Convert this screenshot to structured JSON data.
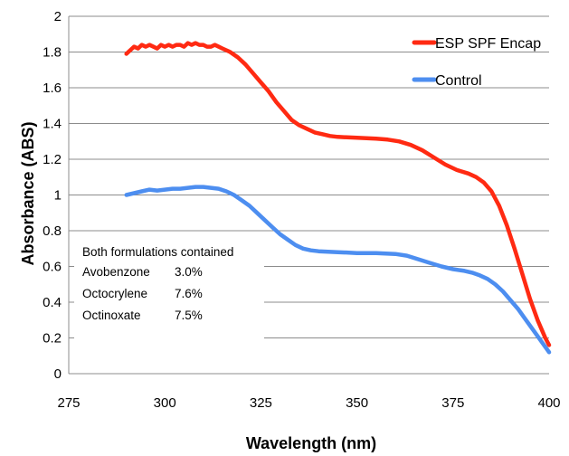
{
  "chart_data": {
    "type": "line",
    "title": "",
    "xlabel": "Wavelength (nm)",
    "ylabel": "Absorbance (ABS)",
    "xlim": [
      275,
      400
    ],
    "ylim": [
      0,
      2
    ],
    "xticks": [
      275,
      300,
      325,
      350,
      375,
      400
    ],
    "yticks": [
      0,
      0.2,
      0.4,
      0.6,
      0.8,
      1,
      1.2,
      1.4,
      1.6,
      1.8,
      2
    ],
    "grid": "horizontal",
    "legend_position": "top-right",
    "series": [
      {
        "name": "ESP SPF Encap",
        "color": "#ff2a12",
        "points": [
          [
            290,
            1.79
          ],
          [
            291,
            1.81
          ],
          [
            292,
            1.83
          ],
          [
            293,
            1.82
          ],
          [
            294,
            1.84
          ],
          [
            295,
            1.83
          ],
          [
            296,
            1.84
          ],
          [
            297,
            1.83
          ],
          [
            298,
            1.82
          ],
          [
            299,
            1.84
          ],
          [
            300,
            1.83
          ],
          [
            301,
            1.84
          ],
          [
            302,
            1.83
          ],
          [
            303,
            1.84
          ],
          [
            304,
            1.84
          ],
          [
            305,
            1.83
          ],
          [
            306,
            1.85
          ],
          [
            307,
            1.84
          ],
          [
            308,
            1.85
          ],
          [
            309,
            1.84
          ],
          [
            310,
            1.84
          ],
          [
            311,
            1.83
          ],
          [
            312,
            1.83
          ],
          [
            313,
            1.84
          ],
          [
            314,
            1.83
          ],
          [
            315,
            1.82
          ],
          [
            317,
            1.8
          ],
          [
            319,
            1.77
          ],
          [
            321,
            1.73
          ],
          [
            323,
            1.68
          ],
          [
            325,
            1.63
          ],
          [
            327,
            1.58
          ],
          [
            329,
            1.52
          ],
          [
            331,
            1.47
          ],
          [
            333,
            1.42
          ],
          [
            335,
            1.39
          ],
          [
            337,
            1.37
          ],
          [
            339,
            1.35
          ],
          [
            341,
            1.34
          ],
          [
            343,
            1.33
          ],
          [
            345,
            1.325
          ],
          [
            350,
            1.32
          ],
          [
            355,
            1.315
          ],
          [
            358,
            1.31
          ],
          [
            361,
            1.3
          ],
          [
            364,
            1.28
          ],
          [
            367,
            1.25
          ],
          [
            370,
            1.21
          ],
          [
            373,
            1.17
          ],
          [
            376,
            1.14
          ],
          [
            379,
            1.12
          ],
          [
            381,
            1.1
          ],
          [
            383,
            1.07
          ],
          [
            385,
            1.02
          ],
          [
            387,
            0.94
          ],
          [
            389,
            0.83
          ],
          [
            391,
            0.7
          ],
          [
            393,
            0.56
          ],
          [
            395,
            0.42
          ],
          [
            397,
            0.3
          ],
          [
            399,
            0.2
          ],
          [
            400,
            0.16
          ]
        ]
      },
      {
        "name": "Control",
        "color": "#4d8ef0",
        "points": [
          [
            290,
            1.0
          ],
          [
            292,
            1.01
          ],
          [
            294,
            1.02
          ],
          [
            296,
            1.03
          ],
          [
            298,
            1.025
          ],
          [
            300,
            1.03
          ],
          [
            302,
            1.035
          ],
          [
            304,
            1.035
          ],
          [
            306,
            1.04
          ],
          [
            308,
            1.045
          ],
          [
            310,
            1.045
          ],
          [
            312,
            1.04
          ],
          [
            314,
            1.035
          ],
          [
            316,
            1.02
          ],
          [
            318,
            1.0
          ],
          [
            320,
            0.97
          ],
          [
            322,
            0.94
          ],
          [
            324,
            0.9
          ],
          [
            326,
            0.86
          ],
          [
            328,
            0.82
          ],
          [
            330,
            0.78
          ],
          [
            332,
            0.75
          ],
          [
            334,
            0.72
          ],
          [
            336,
            0.7
          ],
          [
            338,
            0.69
          ],
          [
            340,
            0.685
          ],
          [
            345,
            0.68
          ],
          [
            350,
            0.675
          ],
          [
            355,
            0.675
          ],
          [
            360,
            0.67
          ],
          [
            363,
            0.66
          ],
          [
            366,
            0.64
          ],
          [
            369,
            0.62
          ],
          [
            372,
            0.6
          ],
          [
            375,
            0.585
          ],
          [
            378,
            0.575
          ],
          [
            380,
            0.565
          ],
          [
            382,
            0.55
          ],
          [
            384,
            0.53
          ],
          [
            386,
            0.5
          ],
          [
            388,
            0.46
          ],
          [
            390,
            0.41
          ],
          [
            392,
            0.36
          ],
          [
            394,
            0.3
          ],
          [
            396,
            0.24
          ],
          [
            398,
            0.18
          ],
          [
            400,
            0.12
          ]
        ]
      }
    ],
    "annotation": {
      "heading": "Both formulations contained",
      "rows": [
        {
          "name": "Avobenzone",
          "value": "3.0%"
        },
        {
          "name": "Octocrylene",
          "value": "7.6%"
        },
        {
          "name": "Octinoxate",
          "value": "7.5%"
        }
      ]
    }
  }
}
